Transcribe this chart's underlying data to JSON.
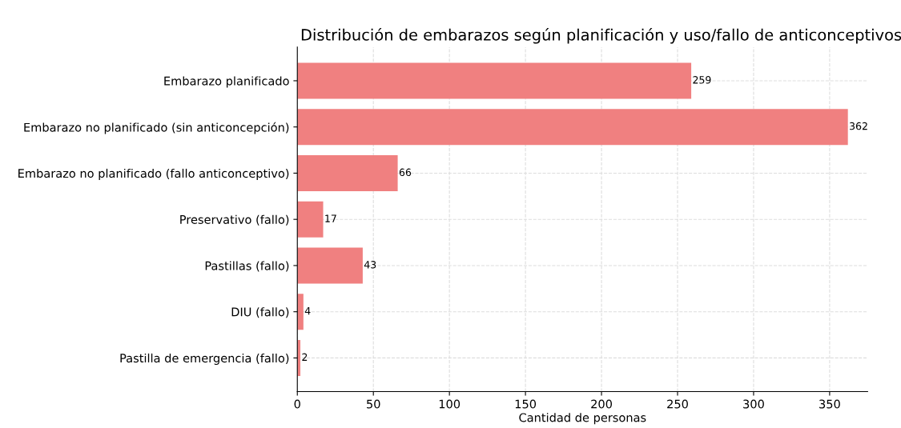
{
  "chart_data": {
    "type": "bar",
    "orientation": "horizontal",
    "title": "Distribución de embarazos según planificación y uso/fallo de anticonceptivos",
    "xlabel": "Cantidad de personas",
    "categories": [
      "Embarazo planificado",
      "Embarazo no planificado (sin anticoncepción)",
      "Embarazo no planificado (fallo anticonceptivo)",
      "Preservativo (fallo)",
      "Pastillas (fallo)",
      "DIU (fallo)",
      "Pastilla de emergencia (fallo)"
    ],
    "values": [
      259,
      362,
      66,
      17,
      43,
      4,
      2
    ],
    "color": "#f08080",
    "data_labels": true,
    "grid": true,
    "xlim": [
      0,
      375
    ],
    "xticks": [
      0,
      50,
      100,
      150,
      200,
      250,
      300,
      350
    ]
  }
}
